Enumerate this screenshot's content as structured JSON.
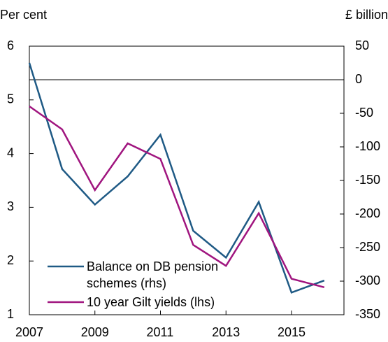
{
  "chart_data": {
    "type": "line",
    "y_label": "Per cent",
    "y2_label": "£ billion",
    "x": [
      2007,
      2008,
      2009,
      2010,
      2011,
      2012,
      2013,
      2014,
      2015,
      2016
    ],
    "xlim": [
      2007,
      2016.6
    ],
    "xticks": [
      2007,
      2009,
      2011,
      2013,
      2015
    ],
    "ylim": [
      1,
      6
    ],
    "yticks": [
      1,
      2,
      3,
      4,
      5,
      6
    ],
    "y2lim": [
      -350,
      50
    ],
    "y2ticks": [
      50,
      0,
      -50,
      -100,
      -150,
      -200,
      -250,
      -300,
      -350
    ],
    "legend": "lower left",
    "series": [
      {
        "name": "Balance on DB pension schemes (rhs)",
        "color": "#1f5a85",
        "axis": "y2",
        "values": [
          25,
          -133,
          -186,
          -144,
          -82,
          -225,
          -265,
          -182,
          -317,
          -299
        ]
      },
      {
        "name": "10 year Gilt yields (lhs)",
        "color": "#a0157f",
        "values": [
          4.88,
          4.45,
          3.32,
          4.19,
          3.9,
          2.3,
          1.91,
          2.89,
          1.67,
          1.51
        ]
      }
    ]
  }
}
